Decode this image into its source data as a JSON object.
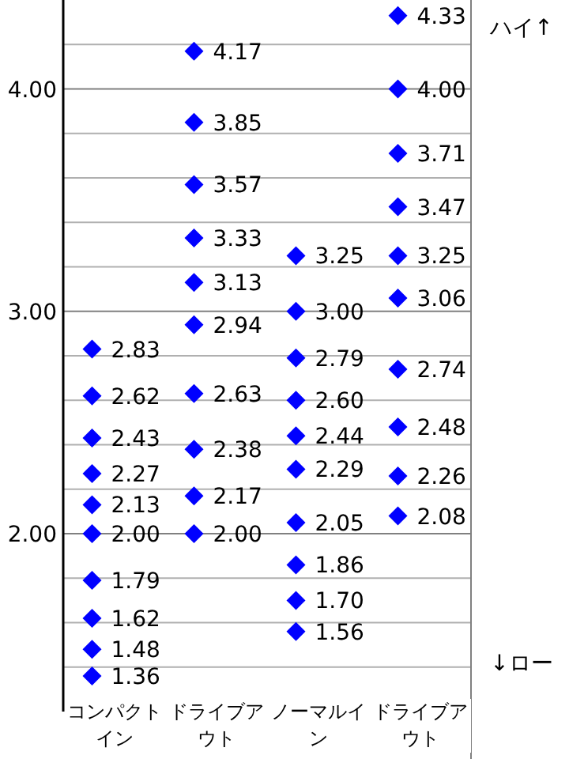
{
  "chart_data": {
    "type": "scatter",
    "categories": [
      "コンパクトイン",
      "ドライブアウト",
      "ノーマルイン",
      "ドライブアウト"
    ],
    "series": [
      {
        "color": "#0000ff",
        "values": [
          2.83,
          4.17,
          3.25,
          4.33
        ],
        "value_labels": [
          "2.83",
          "4.17",
          "3.25",
          "4.33"
        ]
      },
      {
        "color": "#0000ff",
        "values": [
          2.62,
          3.85,
          3.0,
          4.0
        ],
        "value_labels": [
          "2.62",
          "3.85",
          "3.00",
          "4.00"
        ]
      },
      {
        "color": "#0000ff",
        "values": [
          2.43,
          3.57,
          2.79,
          3.71
        ],
        "value_labels": [
          "2.43",
          "3.57",
          "2.79",
          "3.71"
        ]
      },
      {
        "color": "#0000ff",
        "values": [
          2.27,
          3.33,
          2.6,
          3.47
        ],
        "value_labels": [
          "2.27",
          "3.33",
          "2.60",
          "3.47"
        ]
      },
      {
        "color": "#0000ff",
        "values": [
          2.13,
          3.13,
          2.44,
          3.25
        ],
        "value_labels": [
          "2.13",
          "3.13",
          "2.44",
          "3.25"
        ]
      },
      {
        "color": "#0000ff",
        "values": [
          2.0,
          2.94,
          2.29,
          3.06
        ],
        "value_labels": [
          "2.00",
          "2.94",
          "2.29",
          "3.06"
        ]
      },
      {
        "color": "#0000ff",
        "values": [
          1.79,
          2.63,
          2.05,
          2.74
        ],
        "value_labels": [
          "1.79",
          "2.63",
          "2.05",
          "2.74"
        ]
      },
      {
        "color": "#0000ff",
        "values": [
          1.62,
          2.38,
          1.86,
          2.48
        ],
        "value_labels": [
          "1.62",
          "2.38",
          "1.86",
          "2.48"
        ]
      },
      {
        "color": "#0000ff",
        "values": [
          1.48,
          2.17,
          1.7,
          2.26
        ],
        "value_labels": [
          "1.48",
          "2.17",
          "1.70",
          "2.26"
        ]
      },
      {
        "color": "#0000ff",
        "values": [
          1.36,
          2.0,
          1.56,
          2.08
        ],
        "value_labels": [
          "1.36",
          "2.00",
          "1.56",
          "2.08"
        ]
      }
    ],
    "marker": "diamond",
    "grid": "y",
    "ylim": [
      1.2,
      4.4
    ],
    "yticks": [
      {
        "value": 1.4,
        "label": null
      },
      {
        "value": 1.6,
        "label": null
      },
      {
        "value": 1.8,
        "label": null
      },
      {
        "value": 2,
        "label": "2.00"
      },
      {
        "value": 2.2,
        "label": null
      },
      {
        "value": 2.4,
        "label": null
      },
      {
        "value": 2.6,
        "label": null
      },
      {
        "value": 2.8,
        "label": null
      },
      {
        "value": 3,
        "label": "3.00"
      },
      {
        "value": 3.2,
        "label": null
      },
      {
        "value": 3.4,
        "label": null
      },
      {
        "value": 3.6,
        "label": null
      },
      {
        "value": 3.8,
        "label": null
      },
      {
        "value": 4,
        "label": "4.00"
      },
      {
        "value": 4.2,
        "label": null
      }
    ],
    "annotations": [
      "ハイ↑",
      "↓ロー"
    ]
  }
}
